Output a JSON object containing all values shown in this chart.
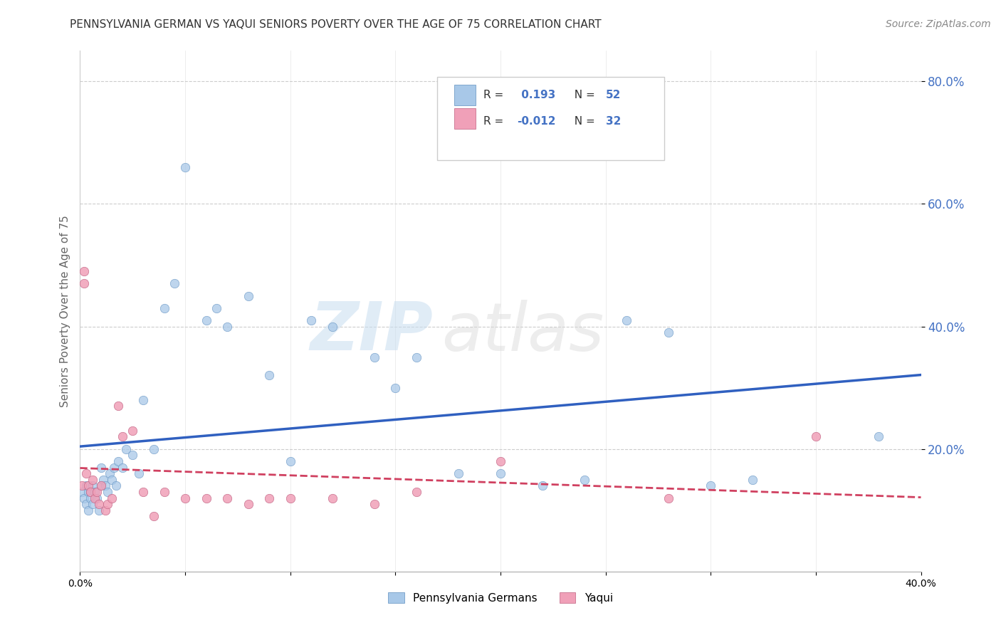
{
  "title": "PENNSYLVANIA GERMAN VS YAQUI SENIORS POVERTY OVER THE AGE OF 75 CORRELATION CHART",
  "source_text": "Source: ZipAtlas.com",
  "ylabel": "Seniors Poverty Over the Age of 75",
  "xlim": [
    0.0,
    0.4
  ],
  "ylim": [
    0.0,
    0.85
  ],
  "xticks": [
    0.0,
    0.05,
    0.1,
    0.15,
    0.2,
    0.25,
    0.3,
    0.35,
    0.4
  ],
  "yticks": [
    0.2,
    0.4,
    0.6,
    0.8
  ],
  "legend_line1": "R =  0.193  N = 52",
  "legend_line2": "R = -0.012  N = 32",
  "watermark_zip": "ZIP",
  "watermark_atlas": "atlas",
  "penn_color": "#a8c8e8",
  "penn_edge_color": "#6090c0",
  "yaqui_color": "#f0a0b8",
  "yaqui_edge_color": "#c06080",
  "penn_line_color": "#3060c0",
  "yaqui_line_color": "#d04060",
  "background_color": "#ffffff",
  "grid_color": "#cccccc",
  "title_color": "#333333",
  "axis_label_color": "#4472c4",
  "pennsylvania_x": [
    0.001,
    0.002,
    0.003,
    0.003,
    0.004,
    0.004,
    0.005,
    0.005,
    0.006,
    0.006,
    0.007,
    0.008,
    0.009,
    0.01,
    0.01,
    0.011,
    0.012,
    0.013,
    0.014,
    0.015,
    0.016,
    0.017,
    0.018,
    0.02,
    0.022,
    0.025,
    0.028,
    0.03,
    0.035,
    0.04,
    0.045,
    0.05,
    0.06,
    0.065,
    0.07,
    0.08,
    0.09,
    0.1,
    0.11,
    0.12,
    0.14,
    0.15,
    0.16,
    0.18,
    0.2,
    0.22,
    0.24,
    0.26,
    0.28,
    0.3,
    0.32,
    0.38
  ],
  "pennsylvania_y": [
    0.13,
    0.12,
    0.14,
    0.11,
    0.13,
    0.1,
    0.13,
    0.12,
    0.14,
    0.11,
    0.13,
    0.12,
    0.1,
    0.14,
    0.17,
    0.15,
    0.14,
    0.13,
    0.16,
    0.15,
    0.17,
    0.14,
    0.18,
    0.17,
    0.2,
    0.19,
    0.16,
    0.28,
    0.2,
    0.43,
    0.47,
    0.66,
    0.41,
    0.43,
    0.4,
    0.45,
    0.32,
    0.18,
    0.41,
    0.4,
    0.35,
    0.3,
    0.35,
    0.16,
    0.16,
    0.14,
    0.15,
    0.41,
    0.39,
    0.14,
    0.15,
    0.22
  ],
  "yaqui_x": [
    0.001,
    0.002,
    0.002,
    0.003,
    0.004,
    0.005,
    0.006,
    0.007,
    0.008,
    0.009,
    0.01,
    0.012,
    0.013,
    0.015,
    0.018,
    0.02,
    0.025,
    0.03,
    0.035,
    0.04,
    0.05,
    0.06,
    0.07,
    0.08,
    0.09,
    0.1,
    0.12,
    0.14,
    0.16,
    0.2,
    0.28,
    0.35
  ],
  "yaqui_y": [
    0.14,
    0.49,
    0.47,
    0.16,
    0.14,
    0.13,
    0.15,
    0.12,
    0.13,
    0.11,
    0.14,
    0.1,
    0.11,
    0.12,
    0.27,
    0.22,
    0.23,
    0.13,
    0.09,
    0.13,
    0.12,
    0.12,
    0.12,
    0.11,
    0.12,
    0.12,
    0.12,
    0.11,
    0.13,
    0.18,
    0.12,
    0.22
  ]
}
